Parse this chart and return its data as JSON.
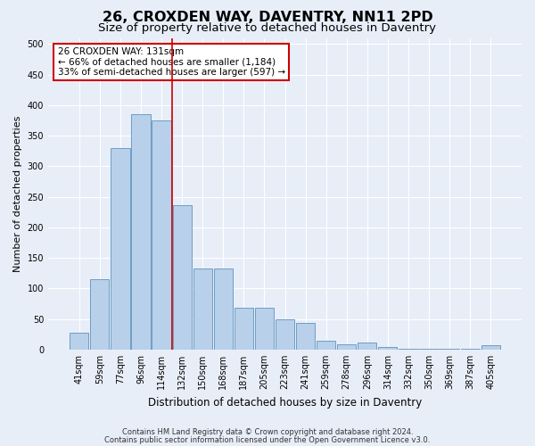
{
  "title1": "26, CROXDEN WAY, DAVENTRY, NN11 2PD",
  "title2": "Size of property relative to detached houses in Daventry",
  "xlabel": "Distribution of detached houses by size in Daventry",
  "ylabel": "Number of detached properties",
  "categories": [
    "41sqm",
    "59sqm",
    "77sqm",
    "96sqm",
    "114sqm",
    "132sqm",
    "150sqm",
    "168sqm",
    "187sqm",
    "205sqm",
    "223sqm",
    "241sqm",
    "259sqm",
    "278sqm",
    "296sqm",
    "314sqm",
    "332sqm",
    "350sqm",
    "369sqm",
    "387sqm",
    "405sqm"
  ],
  "values": [
    27,
    115,
    330,
    385,
    375,
    237,
    133,
    133,
    68,
    68,
    50,
    43,
    15,
    8,
    11,
    4,
    1,
    1,
    1,
    1,
    7
  ],
  "bar_color": "#b8d0ea",
  "bar_edge_color": "#6e9ec5",
  "vline_color": "#cc0000",
  "vline_x": 4.5,
  "annotation_text": "26 CROXDEN WAY: 131sqm\n← 66% of detached houses are smaller (1,184)\n33% of semi-detached houses are larger (597) →",
  "annotation_box_color": "#ffffff",
  "annotation_box_edge_color": "#cc0000",
  "background_color": "#e8eef8",
  "plot_bg_color": "#e8eef8",
  "grid_color": "#ffffff",
  "footer1": "Contains HM Land Registry data © Crown copyright and database right 2024.",
  "footer2": "Contains public sector information licensed under the Open Government Licence v3.0.",
  "ylim": [
    0,
    510
  ],
  "yticks": [
    0,
    50,
    100,
    150,
    200,
    250,
    300,
    350,
    400,
    450,
    500
  ],
  "title1_fontsize": 11.5,
  "title2_fontsize": 9.5,
  "ylabel_fontsize": 8,
  "xlabel_fontsize": 8.5,
  "tick_fontsize": 7,
  "annot_fontsize": 7.5,
  "footer_fontsize": 6
}
